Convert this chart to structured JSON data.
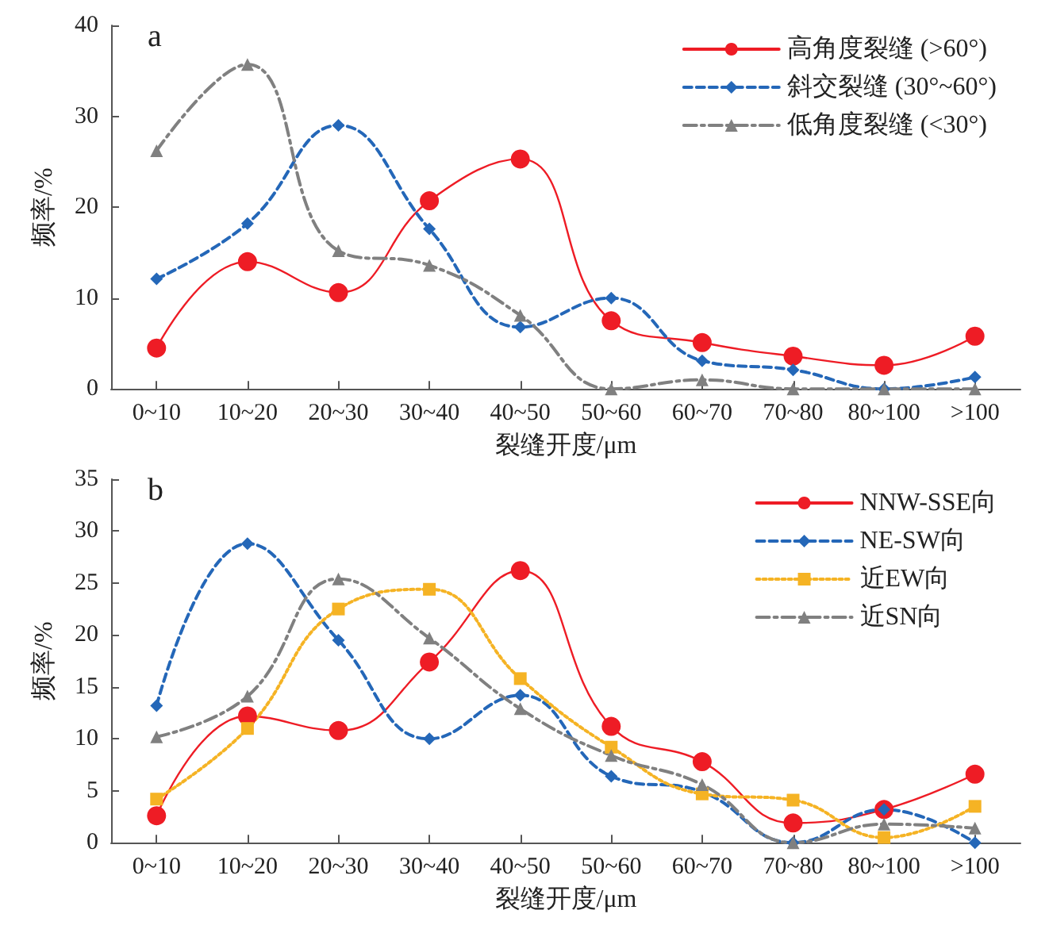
{
  "chart_data": [
    {
      "type": "line",
      "title": "a",
      "xlabel": "裂缝开度/μm",
      "ylabel": "频率/%",
      "categories": [
        "0~10",
        "10~20",
        "20~30",
        "30~40",
        "40~50",
        "50~60",
        "60~70",
        "70~80",
        "80~100",
        ">100"
      ],
      "ylim": [
        0,
        40
      ],
      "yticks": [
        0,
        10,
        20,
        30,
        40
      ],
      "grid": false,
      "legend": "top right",
      "series": [
        {
          "name": "高角度裂缝 (>60°)",
          "color": "#ee1c25",
          "marker": "circle",
          "line_style": "solid",
          "values": [
            4.5,
            14,
            10.6,
            20.7,
            25.3,
            7.5,
            5.1,
            3.6,
            2.6,
            5.8
          ]
        },
        {
          "name": "斜交裂缝 (30°~60°)",
          "color": "#2467b8",
          "marker": "diamond",
          "line_style": "dashed",
          "values": [
            12.1,
            18.2,
            29,
            17.6,
            6.8,
            10,
            3.1,
            2.1,
            0,
            1.3
          ]
        },
        {
          "name": "低角度裂缝 (<30°)",
          "color": "#808080",
          "marker": "triangle",
          "line_style": "dashdot",
          "values": [
            26.2,
            35.7,
            15.2,
            13.6,
            8.1,
            0,
            1,
            0,
            0,
            0
          ]
        }
      ]
    },
    {
      "type": "line",
      "title": "b",
      "xlabel": "裂缝开度/μm",
      "ylabel": "频率/%",
      "categories": [
        "0~10",
        "10~20",
        "20~30",
        "30~40",
        "40~50",
        "50~60",
        "60~70",
        "70~80",
        "80~100",
        ">100"
      ],
      "ylim": [
        0,
        35
      ],
      "yticks": [
        0,
        5,
        10,
        15,
        20,
        25,
        30,
        35
      ],
      "grid": false,
      "legend": "top right",
      "series": [
        {
          "name": "NNW-SSE向",
          "color": "#ee1c25",
          "marker": "circle",
          "line_style": "solid",
          "values": [
            2.6,
            12.2,
            10.8,
            17.4,
            26.2,
            11.2,
            7.8,
            1.9,
            3.2,
            6.6
          ]
        },
        {
          "name": "NE-SW向",
          "color": "#2467b8",
          "marker": "diamond",
          "line_style": "dashed",
          "values": [
            13.2,
            28.8,
            19.5,
            10,
            14.2,
            6.4,
            4.9,
            0,
            3.2,
            0
          ]
        },
        {
          "name": "近EW向",
          "color": "#f5b324",
          "marker": "square",
          "line_style": "dotted",
          "values": [
            4.2,
            11,
            22.5,
            24.4,
            15.8,
            9.2,
            4.7,
            4.1,
            0.5,
            3.5
          ]
        },
        {
          "name": "近SN向",
          "color": "#808080",
          "marker": "triangle",
          "line_style": "dashdot",
          "values": [
            10.2,
            14.1,
            25.4,
            19.7,
            12.9,
            8.4,
            5.6,
            0,
            1.8,
            1.4
          ]
        }
      ]
    }
  ]
}
